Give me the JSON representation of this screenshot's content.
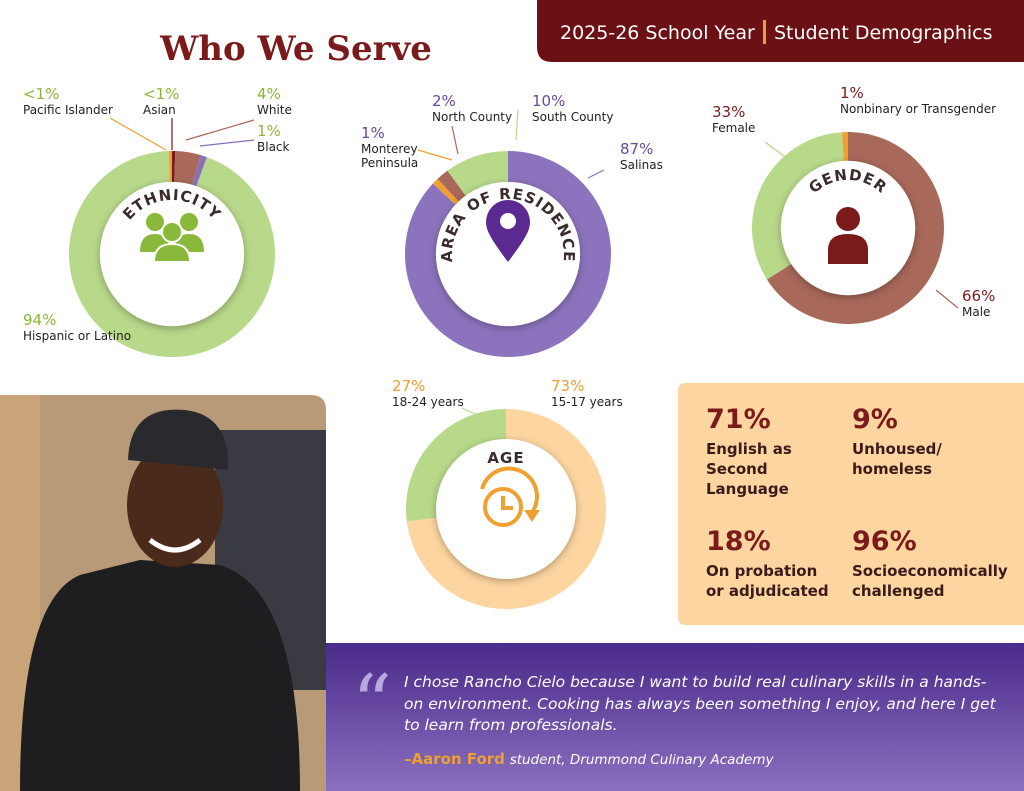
{
  "header": {
    "title": "Who We Serve",
    "banner_left": "2025-26 School Year",
    "banner_right": "Student Demographics"
  },
  "chart_data": [
    {
      "type": "pie",
      "donut": true,
      "title": "ETHNICITY",
      "label_color": "#8ab83a",
      "categories": [
        "Asian",
        "White",
        "Black",
        "Hispanic or Latino",
        "Pacific Islander"
      ],
      "values": [
        0.5,
        4,
        1,
        94,
        0.5
      ],
      "value_labels": [
        "<1%",
        "4%",
        "1%",
        "94%",
        "<1%"
      ],
      "colors": [
        "#7a1a1a",
        "#a8685a",
        "#8a70b8",
        "#b8d88a",
        "#f0a030"
      ]
    },
    {
      "type": "pie",
      "donut": true,
      "title": "AREA OF RESIDENCE",
      "label_color": "#6a4a9a",
      "categories": [
        "Salinas",
        "Monterey Peninsula",
        "North County",
        "South County"
      ],
      "values": [
        87,
        1,
        2,
        10
      ],
      "value_labels": [
        "87%",
        "1%",
        "2%",
        "10%"
      ],
      "colors": [
        "#8c73bd",
        "#f0a030",
        "#a8685a",
        "#b8d88a"
      ]
    },
    {
      "type": "pie",
      "donut": true,
      "title": "GENDER",
      "label_color": "#7a1a1a",
      "categories": [
        "Male",
        "Female",
        "Nonbinary or Transgender"
      ],
      "values": [
        66,
        33,
        1
      ],
      "value_labels": [
        "66%",
        "33%",
        "1%"
      ],
      "colors": [
        "#a8685a",
        "#b8d88a",
        "#f0a030"
      ]
    },
    {
      "type": "pie",
      "donut": true,
      "title": "AGE",
      "label_color": "#e8a030",
      "categories": [
        "15-17 years",
        "18-24 years"
      ],
      "values": [
        73,
        27
      ],
      "value_labels": [
        "73%",
        "27%"
      ],
      "colors": [
        "#fdd5a0",
        "#b8d88a"
      ]
    }
  ],
  "stats": [
    {
      "value": "71%",
      "text": "English as Second Language"
    },
    {
      "value": "9%",
      "text": "Unhoused/ homeless"
    },
    {
      "value": "18%",
      "text": "On probation or adjudicated"
    },
    {
      "value": "96%",
      "text": "Socioeconomically challenged"
    }
  ],
  "quote": {
    "text": "I chose Rancho Cielo because I want to build real culinary skills in a hands-on environment. Cooking has always been something I enjoy, and here I get to learn from professionals.",
    "name": "–Aaron Ford",
    "role": "student, Drummond Culinary Academy"
  }
}
